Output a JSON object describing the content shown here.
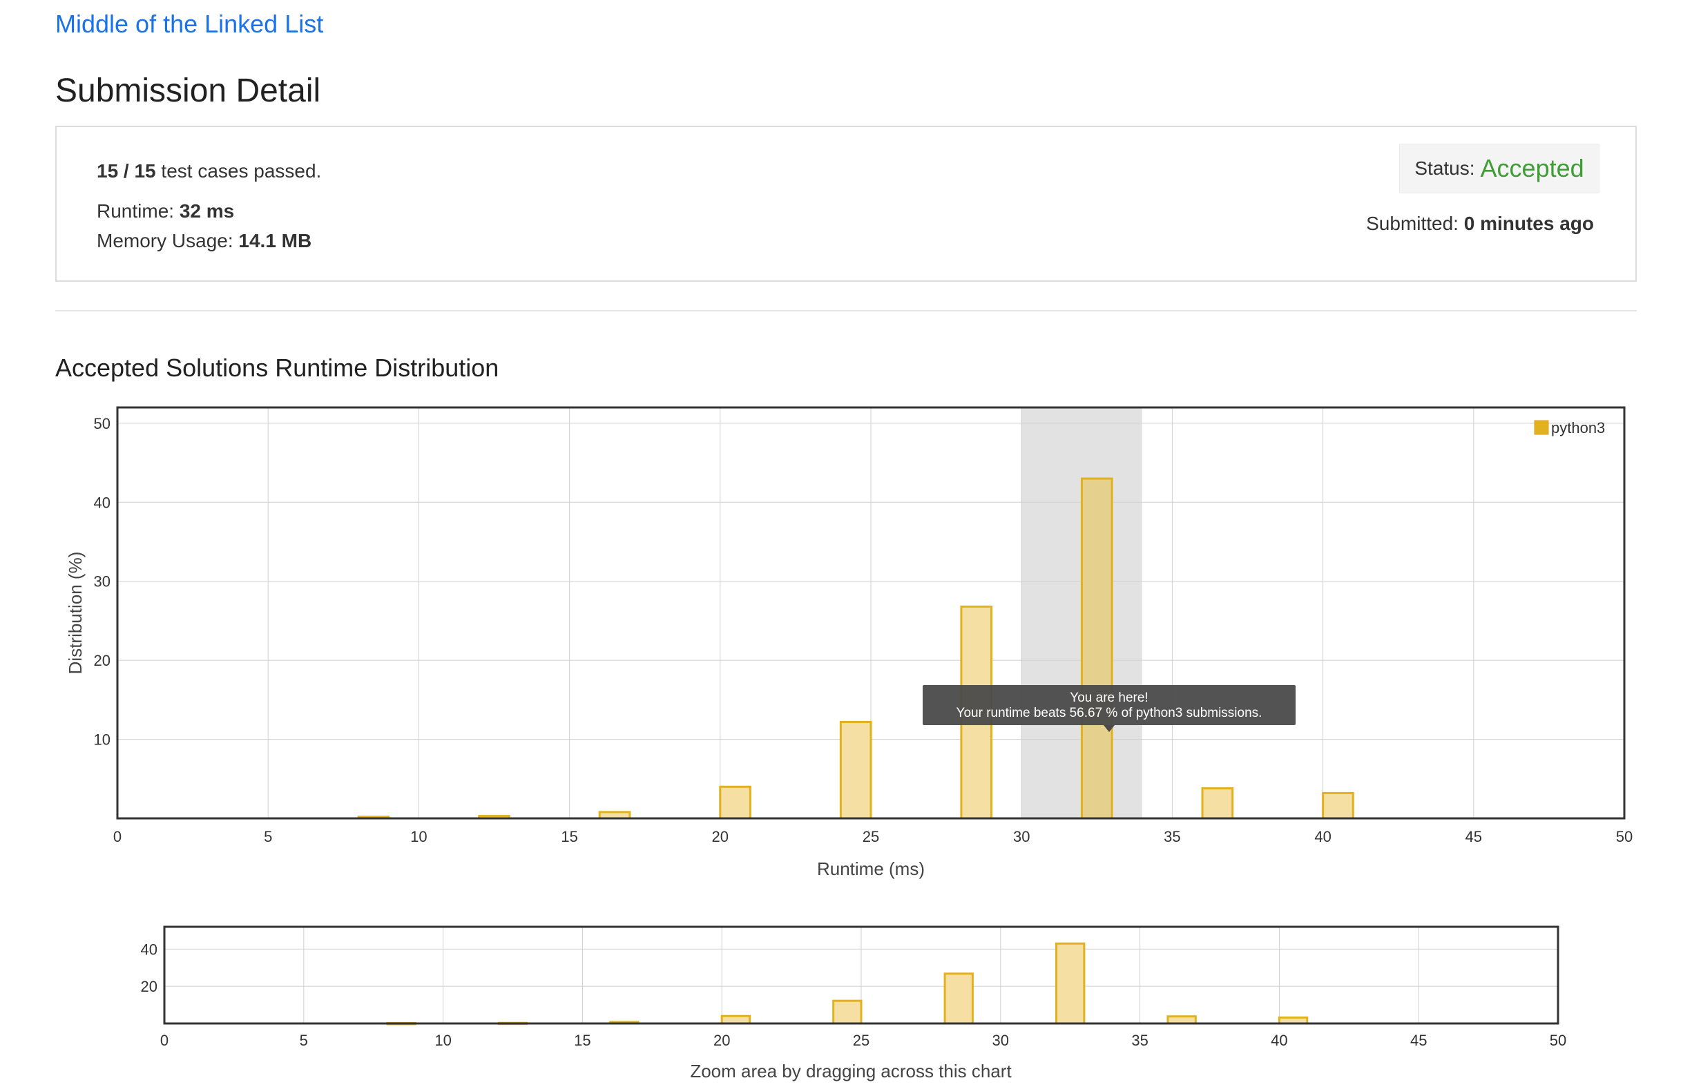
{
  "problem": {
    "title": "Middle of the Linked List"
  },
  "page": {
    "title": "Submission Detail"
  },
  "details": {
    "cases_passed": "15 / 15",
    "cases_suffix": "test cases passed.",
    "runtime_label": "Runtime:",
    "runtime_value": "32 ms",
    "memory_label": "Memory Usage:",
    "memory_value": "14.1 MB",
    "status_label": "Status:",
    "status_value": "Accepted",
    "submitted_label": "Submitted:",
    "submitted_value": "0 minutes ago"
  },
  "colors": {
    "link": "#1a73e8",
    "accepted": "#3e9d33",
    "bar_fill": "#f5dfa3",
    "bar_stroke": "#e2b11e"
  },
  "chart": {
    "title": "Accepted Solutions Runtime Distribution"
  },
  "chart_data": [
    {
      "type": "bar",
      "xlabel": "Runtime (ms)",
      "ylabel": "Distribution (%)",
      "xlim": [
        0,
        50
      ],
      "ylim": [
        0,
        52
      ],
      "xticks": [
        0,
        5,
        10,
        15,
        20,
        25,
        30,
        35,
        40,
        45,
        50
      ],
      "yticks": [
        10,
        20,
        30,
        40,
        50
      ],
      "grid": true,
      "legend_position": "top-right",
      "series": [
        {
          "name": "python3",
          "x": [
            8.5,
            12.5,
            16.5,
            20.5,
            24.5,
            28.5,
            32.5,
            36.5,
            40.5
          ],
          "values": [
            0.2,
            0.3,
            0.8,
            4.0,
            12.2,
            26.8,
            43.0,
            3.8,
            3.2
          ]
        }
      ],
      "highlight_range": [
        30,
        34
      ],
      "tooltip": {
        "line1": "You are here!",
        "line2": "Your runtime beats 56.67 % of python3 submissions."
      }
    },
    {
      "type": "bar",
      "xlim": [
        0,
        50
      ],
      "ylim": [
        0,
        52
      ],
      "xticks": [
        0,
        5,
        10,
        15,
        20,
        25,
        30,
        35,
        40,
        45,
        50
      ],
      "yticks": [
        20,
        40
      ],
      "grid": true,
      "series": [
        {
          "x": [
            8.5,
            12.5,
            16.5,
            20.5,
            24.5,
            28.5,
            32.5,
            36.5,
            40.5
          ],
          "values": [
            0.2,
            0.3,
            0.8,
            4.0,
            12.2,
            26.8,
            43.0,
            3.8,
            3.2
          ]
        }
      ],
      "caption": "Zoom area by dragging across this chart"
    }
  ]
}
